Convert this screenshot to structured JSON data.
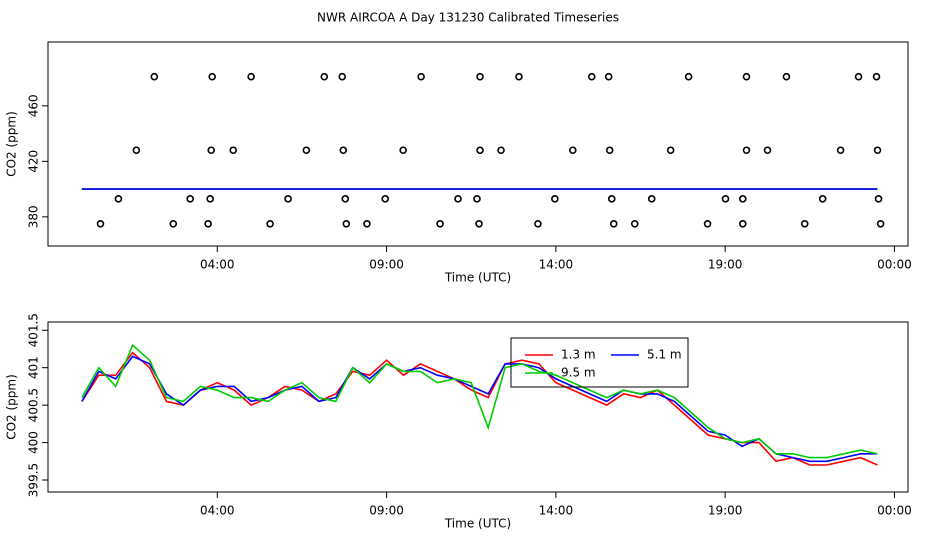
{
  "chart_data": [
    {
      "type": "scatter",
      "title": "NWR AIRCOA A  Day 131230  Calibrated Timeseries",
      "xlabel": "Time (UTC)",
      "ylabel": "CO2 (ppm)",
      "xlim": [
        -1.0,
        24.4
      ],
      "ylim": [
        359,
        506
      ],
      "xticks": [
        {
          "value": 4,
          "label": "04:00"
        },
        {
          "value": 9,
          "label": "09:00"
        },
        {
          "value": 14,
          "label": "14:00"
        },
        {
          "value": 19,
          "label": "19:00"
        },
        {
          "value": 24,
          "label": "00:00"
        }
      ],
      "yticks": [
        380,
        420,
        460
      ],
      "points": {
        "color": "#000000",
        "x": [
          2.14,
          3.85,
          5.0,
          7.16,
          7.69,
          10.02,
          11.76,
          12.91,
          15.06,
          15.56,
          17.92,
          19.63,
          20.81,
          22.94,
          23.47,
          1.61,
          3.82,
          4.47,
          6.63,
          7.72,
          9.49,
          11.76,
          12.38,
          14.5,
          15.59,
          17.39,
          19.63,
          20.25,
          22.41,
          23.5,
          1.08,
          3.2,
          3.79,
          6.09,
          7.78,
          8.96,
          11.11,
          11.67,
          13.97,
          15.65,
          16.83,
          19.01,
          19.52,
          21.88,
          23.53,
          0.55,
          2.7,
          3.73,
          5.56,
          7.81,
          8.42,
          10.58,
          11.73,
          13.47,
          15.71,
          16.33,
          18.48,
          19.52,
          21.35,
          23.59
        ],
        "y": [
          481,
          481,
          481,
          481,
          481,
          481,
          481,
          481,
          481,
          481,
          481,
          481,
          481,
          481,
          481,
          428,
          428,
          428,
          428,
          428,
          428,
          428,
          428,
          428,
          428,
          428,
          428,
          428,
          428,
          428,
          393,
          393,
          393,
          393,
          393,
          393,
          393,
          393,
          393,
          393,
          393,
          393,
          393,
          393,
          393,
          375,
          375,
          375,
          375,
          375,
          375,
          375,
          375,
          375,
          375,
          375,
          375,
          375,
          375,
          375
        ]
      },
      "x": [
        0,
        23.5
      ],
      "series": [
        {
          "color": "#ff0000",
          "values": [
            400,
            400
          ]
        },
        {
          "color": "#00cc00",
          "values": [
            400,
            400
          ]
        },
        {
          "color": "#0000ff",
          "values": [
            400,
            400
          ]
        }
      ]
    },
    {
      "type": "line",
      "xlabel": "Time (UTC)",
      "ylabel": "CO2 (ppm)",
      "xlim": [
        -1.0,
        24.4
      ],
      "ylim": [
        399.34,
        401.61
      ],
      "xticks": [
        {
          "value": 4,
          "label": "04:00"
        },
        {
          "value": 9,
          "label": "09:00"
        },
        {
          "value": 14,
          "label": "14:00"
        },
        {
          "value": 19,
          "label": "19:00"
        },
        {
          "value": 24,
          "label": "00:00"
        }
      ],
      "yticks": [
        399.5,
        400,
        400.5,
        401,
        401.5
      ],
      "legend": "top-center",
      "x": [
        0,
        0.5,
        1,
        1.5,
        2,
        2.5,
        3,
        3.5,
        4,
        4.5,
        5,
        5.5,
        6,
        6.5,
        7,
        7.5,
        8,
        8.5,
        9,
        9.5,
        10,
        10.5,
        11,
        11.5,
        12,
        12.5,
        13,
        13.5,
        14,
        14.5,
        15,
        15.5,
        16,
        16.5,
        17,
        17.5,
        18,
        18.5,
        19,
        19.5,
        20,
        20.5,
        21,
        21.5,
        22,
        22.5,
        23,
        23.5
      ],
      "series": [
        {
          "name": "1.3 m",
          "color": "#ff0000",
          "values": [
            400.55,
            400.9,
            400.9,
            401.2,
            401.0,
            400.55,
            400.5,
            400.7,
            400.8,
            400.7,
            400.5,
            400.6,
            400.75,
            400.7,
            400.55,
            400.65,
            400.95,
            400.9,
            401.1,
            400.9,
            401.05,
            400.95,
            400.85,
            400.7,
            400.6,
            401.05,
            401.1,
            401.05,
            400.8,
            400.7,
            400.6,
            400.5,
            400.65,
            400.6,
            400.7,
            400.5,
            400.3,
            400.1,
            400.05,
            400.0,
            400.0,
            399.75,
            399.8,
            399.7,
            399.7,
            399.75,
            399.8,
            399.7
          ]
        },
        {
          "name": "5.1 m",
          "color": "#0000ff",
          "values": [
            400.55,
            400.95,
            400.85,
            401.15,
            401.05,
            400.65,
            400.5,
            400.7,
            400.75,
            400.75,
            400.55,
            400.6,
            400.7,
            400.75,
            400.55,
            400.6,
            401.0,
            400.85,
            401.05,
            400.95,
            401.0,
            400.9,
            400.85,
            400.75,
            400.65,
            401.05,
            401.05,
            401.0,
            400.85,
            400.75,
            400.65,
            400.55,
            400.7,
            400.65,
            400.65,
            400.55,
            400.35,
            400.15,
            400.1,
            399.95,
            400.05,
            399.85,
            399.8,
            399.75,
            399.75,
            399.8,
            399.85,
            399.85
          ]
        },
        {
          "name": "9.5 m",
          "color": "#00cc00",
          "values": [
            400.6,
            401.0,
            400.75,
            401.3,
            401.1,
            400.6,
            400.55,
            400.75,
            400.7,
            400.6,
            400.6,
            400.55,
            400.7,
            400.8,
            400.6,
            400.55,
            401.0,
            400.8,
            401.05,
            400.95,
            400.95,
            400.8,
            400.85,
            400.8,
            400.2,
            401.0,
            401.05,
            400.95,
            400.9,
            400.8,
            400.7,
            400.6,
            400.7,
            400.65,
            400.7,
            400.6,
            400.4,
            400.2,
            400.05,
            400.0,
            400.05,
            399.85,
            399.85,
            399.8,
            399.8,
            399.85,
            399.9,
            399.85
          ]
        }
      ]
    }
  ]
}
